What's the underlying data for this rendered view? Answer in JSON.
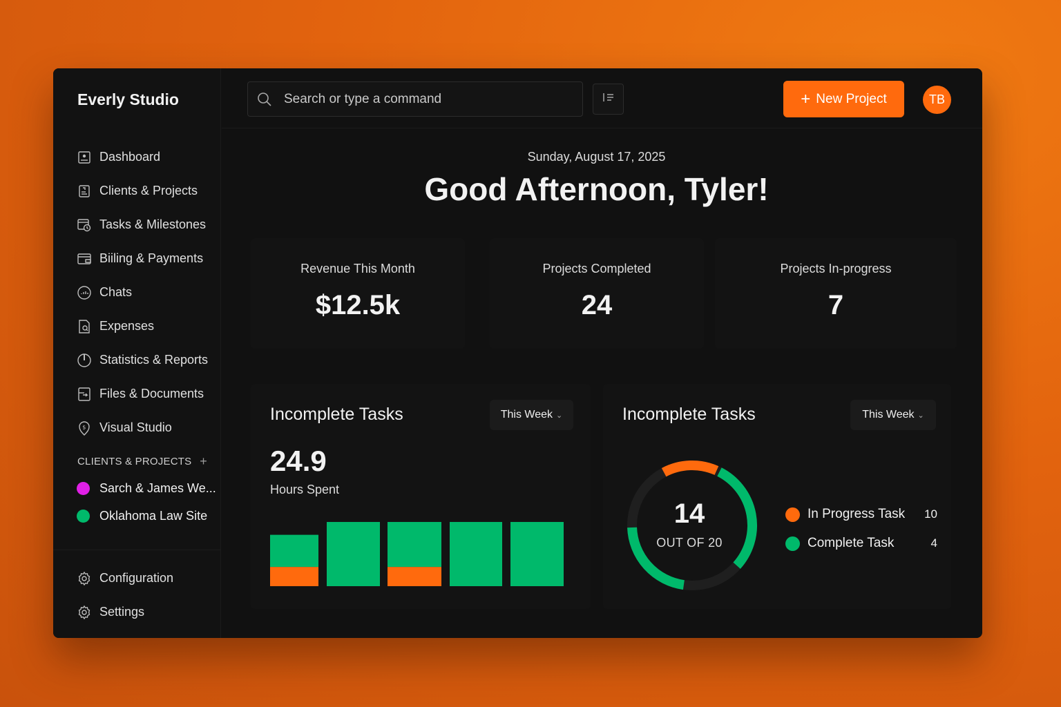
{
  "app": {
    "brand": "Everly Studio"
  },
  "colors": {
    "accent": "#ff6a0d",
    "green": "#00b96b",
    "magenta": "#e020e6"
  },
  "sidebar": {
    "items": [
      {
        "label": "Dashboard",
        "icon": "dashboard-icon"
      },
      {
        "label": "Clients & Projects",
        "icon": "clients-icon"
      },
      {
        "label": "Tasks & Milestones",
        "icon": "tasks-icon"
      },
      {
        "label": "Biiling & Payments",
        "icon": "wallet-icon"
      },
      {
        "label": "Chats",
        "icon": "chat-icon"
      },
      {
        "label": "Expenses",
        "icon": "receipt-icon"
      },
      {
        "label": "Statistics & Reports",
        "icon": "pie-icon"
      },
      {
        "label": "Files & Documents",
        "icon": "file-icon"
      },
      {
        "label": "Visual Studio",
        "icon": "dollar-tag-icon"
      }
    ],
    "section_label": "CLIENTS & PROJECTS",
    "clients": [
      {
        "label": "Sarch & James We...",
        "color": "#e020e6"
      },
      {
        "label": "Oklahoma Law Site",
        "color": "#00b96b"
      }
    ],
    "bottom": [
      {
        "label": "Configuration",
        "icon": "gear-icon"
      },
      {
        "label": "Settings",
        "icon": "gear-icon"
      }
    ]
  },
  "topbar": {
    "search_placeholder": "Search or type a command",
    "new_project_label": "New Project",
    "avatar_initials": "TB"
  },
  "header": {
    "date": "Sunday, August 17, 2025",
    "greeting": "Good Afternoon, Tyler!"
  },
  "stats": [
    {
      "label": "Revenue This Month",
      "value": "$12.5k"
    },
    {
      "label": "Projects Completed",
      "value": "24"
    },
    {
      "label": "Projects In-progress",
      "value": "7"
    }
  ],
  "panel_hours": {
    "title": "Incomplete Tasks",
    "filter": "This Week",
    "value": "24.9",
    "sub_label": "Hours Spent"
  },
  "panel_tasks": {
    "title": "Incomplete Tasks",
    "filter": "This Week",
    "center_value": "14",
    "center_label": "OUT OF 20",
    "legend": [
      {
        "label": "In Progress Task",
        "count": "10",
        "color": "#ff6a0d"
      },
      {
        "label": "Complete Task",
        "count": "4",
        "color": "#00b96b"
      }
    ]
  },
  "chart_data": [
    {
      "type": "bar",
      "stacked": true,
      "categories": [
        "",
        "",
        "",
        "",
        ""
      ],
      "series": [
        {
          "values": [
            0.3,
            0,
            0.3,
            0,
            0
          ],
          "color": "#ff6a0d"
        },
        {
          "values": [
            0.5,
            1.0,
            0.7,
            1.0,
            1.0
          ],
          "color": "#00b96b"
        }
      ],
      "ylim": [
        0,
        1
      ]
    },
    {
      "type": "pie",
      "donut": true,
      "slices": [
        {
          "label": "In Progress Task",
          "value": 10,
          "color": "#ff6a0d"
        },
        {
          "label": "Complete Task",
          "value": 4,
          "color": "#00b96b"
        }
      ],
      "total": 20
    }
  ]
}
